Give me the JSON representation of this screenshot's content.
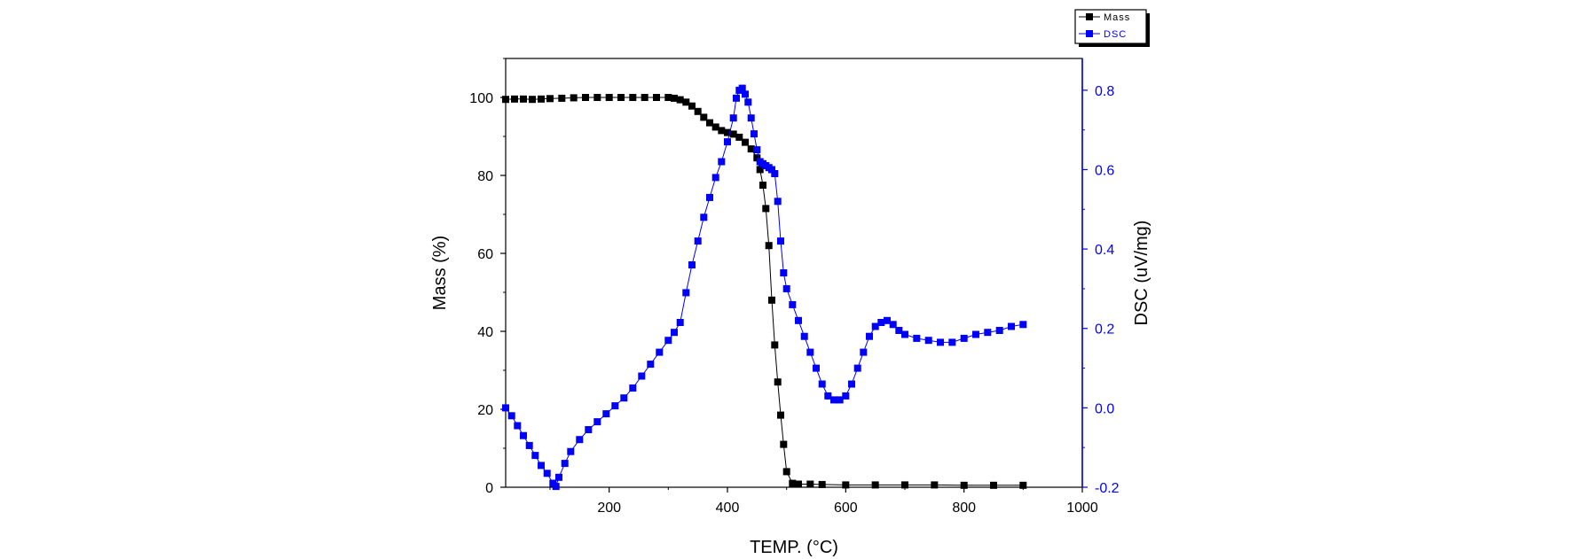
{
  "chart_data": {
    "type": "scatter",
    "xlabel": "TEMP. (°C)",
    "ylabel_left": "Mass (%)",
    "ylabel_right": "DSC (uV/mg)",
    "xlim": [
      25,
      1000
    ],
    "ylim_left": [
      0,
      110
    ],
    "ylim_right": [
      -0.2,
      0.88
    ],
    "x_ticks": [
      200,
      400,
      600,
      800,
      1000
    ],
    "y_left_ticks": [
      0,
      20,
      40,
      60,
      80,
      100
    ],
    "y_right_ticks": [
      -0.2,
      0.0,
      0.2,
      0.4,
      0.6,
      0.8
    ],
    "y_right_tick_labels": [
      "-0.2",
      "0.0",
      "0.2",
      "0.4",
      "0.6",
      "0.8"
    ],
    "grid": false,
    "legend_position": "top-right",
    "colors": {
      "mass": "#000000",
      "dsc": "#0000ff"
    },
    "series": [
      {
        "name": "Mass",
        "axis": "left",
        "x": [
          25,
          40,
          55,
          70,
          85,
          100,
          120,
          140,
          160,
          180,
          200,
          220,
          240,
          260,
          280,
          300,
          310,
          320,
          330,
          340,
          350,
          360,
          370,
          380,
          390,
          400,
          410,
          420,
          430,
          440,
          450,
          455,
          460,
          465,
          470,
          475,
          480,
          485,
          490,
          495,
          500,
          510,
          520,
          540,
          560,
          600,
          650,
          700,
          750,
          800,
          850,
          900
        ],
        "values": [
          99.5,
          99.6,
          99.6,
          99.5,
          99.6,
          99.7,
          99.8,
          99.9,
          100,
          100,
          100,
          100,
          100,
          100,
          100,
          100,
          99.8,
          99.4,
          98.8,
          97.8,
          96.4,
          94.9,
          93.5,
          92.4,
          91.5,
          91.0,
          90.6,
          89.8,
          88.5,
          86.8,
          84.5,
          81.5,
          77.5,
          71.5,
          62.0,
          48.0,
          36.5,
          27.0,
          18.5,
          11.0,
          4.0,
          1.0,
          0.8,
          0.8,
          0.7,
          0.6,
          0.6,
          0.6,
          0.6,
          0.5,
          0.5,
          0.5
        ]
      },
      {
        "name": "DSC",
        "axis": "right",
        "x": [
          25,
          35,
          45,
          55,
          65,
          75,
          85,
          95,
          105,
          110,
          115,
          125,
          135,
          150,
          165,
          180,
          195,
          210,
          225,
          240,
          255,
          270,
          285,
          300,
          310,
          320,
          330,
          340,
          350,
          360,
          370,
          380,
          390,
          400,
          410,
          415,
          420,
          425,
          430,
          435,
          440,
          445,
          450,
          455,
          460,
          465,
          470,
          475,
          480,
          485,
          490,
          495,
          500,
          510,
          520,
          530,
          540,
          550,
          560,
          570,
          580,
          590,
          600,
          610,
          620,
          630,
          640,
          650,
          660,
          670,
          680,
          690,
          700,
          720,
          740,
          760,
          780,
          800,
          820,
          840,
          860,
          880,
          900
        ],
        "values": [
          0.0,
          -0.02,
          -0.045,
          -0.07,
          -0.095,
          -0.12,
          -0.145,
          -0.165,
          -0.19,
          -0.198,
          -0.175,
          -0.14,
          -0.11,
          -0.08,
          -0.055,
          -0.035,
          -0.015,
          0.005,
          0.025,
          0.05,
          0.08,
          0.11,
          0.14,
          0.17,
          0.19,
          0.215,
          0.29,
          0.36,
          0.42,
          0.48,
          0.53,
          0.58,
          0.62,
          0.67,
          0.73,
          0.78,
          0.8,
          0.805,
          0.79,
          0.77,
          0.73,
          0.69,
          0.65,
          0.62,
          0.615,
          0.61,
          0.605,
          0.6,
          0.59,
          0.52,
          0.42,
          0.34,
          0.3,
          0.26,
          0.22,
          0.18,
          0.14,
          0.1,
          0.06,
          0.03,
          0.02,
          0.02,
          0.03,
          0.06,
          0.1,
          0.14,
          0.18,
          0.205,
          0.215,
          0.22,
          0.21,
          0.195,
          0.185,
          0.175,
          0.17,
          0.165,
          0.165,
          0.175,
          0.185,
          0.19,
          0.195,
          0.205,
          0.21
        ]
      }
    ]
  }
}
